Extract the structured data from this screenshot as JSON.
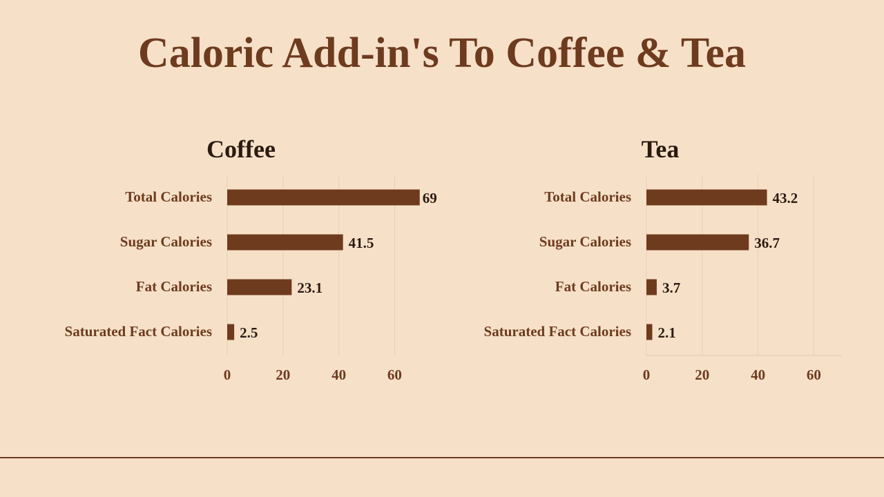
{
  "title": "Caloric Add-in's To Coffee & Tea",
  "colors": {
    "background": "#f7e0c8",
    "bar": "#6e3b1e",
    "label": "#6e3b1e",
    "value": "#2a1a10",
    "grid": "#e8cfb6"
  },
  "chart_data": [
    {
      "type": "bar",
      "orientation": "horizontal",
      "title": "Coffee",
      "categories": [
        "Total Calories",
        "Sugar Calories",
        "Fat Calories",
        "Saturated Fact Calories"
      ],
      "values": [
        69,
        41.5,
        23.1,
        2.5
      ],
      "data_labels": [
        "69",
        "41.5",
        "23.1",
        "2.5"
      ],
      "xlim": [
        0,
        70
      ],
      "xticks": [
        "0",
        "20",
        "40",
        "60"
      ],
      "xtick_values": [
        0,
        20,
        40,
        60
      ],
      "grid": true,
      "axis_line": false
    },
    {
      "type": "bar",
      "orientation": "horizontal",
      "title": "Tea",
      "categories": [
        "Total Calories",
        "Sugar Calories",
        "Fat Calories",
        "Saturated Fact Calories"
      ],
      "values": [
        43.2,
        36.7,
        3.7,
        2.1
      ],
      "data_labels": [
        "43.2",
        "36.7",
        "3.7",
        "2.1"
      ],
      "xlim": [
        0,
        70
      ],
      "xticks": [
        "0",
        "20",
        "40",
        "60"
      ],
      "xtick_values": [
        0,
        20,
        40,
        60
      ],
      "grid": true,
      "axis_line": true
    }
  ]
}
